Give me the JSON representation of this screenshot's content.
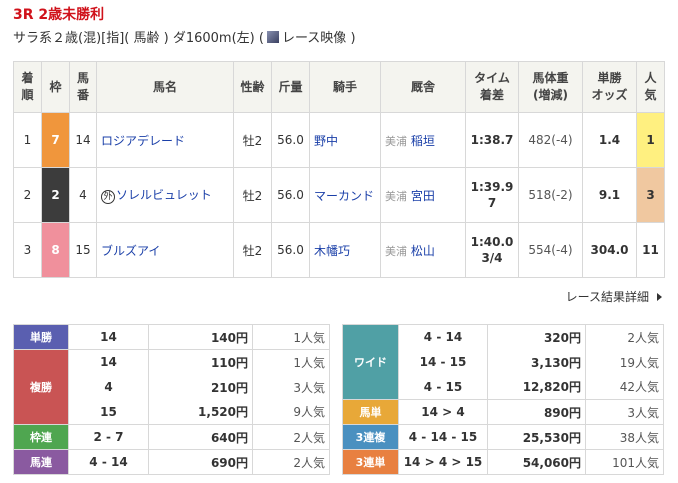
{
  "race": {
    "title": "3R 2歳未勝利",
    "conditions": "サラ系２歳(混)[指]( 馬齢 ) ダ1600m(左)  (",
    "video_label": "レース映像",
    "close_paren": ")"
  },
  "table": {
    "headers": [
      "着\n順",
      "枠",
      "馬\n番",
      "馬名",
      "性齢",
      "斤量",
      "騎手",
      "厩舎",
      "タイム\n着差",
      "馬体重\n(増減)",
      "単勝\nオッズ",
      "人\n気"
    ],
    "rows": [
      {
        "rank": "1",
        "frame": "7",
        "frame_color": "#f0963c",
        "num": "14",
        "name": "ロジアデレード",
        "mark": "",
        "sexage": "牡2",
        "weight": "56.0",
        "jockey": "野中",
        "stable_loc": "美浦",
        "trainer": "稲垣",
        "time": "1:38.7",
        "margin": "",
        "body": "482(-4)",
        "odds": "1.4",
        "pop": "1",
        "pop_color": "#fff080"
      },
      {
        "rank": "2",
        "frame": "2",
        "frame_color": "#3c3c3c",
        "num": "4",
        "name": "ソレルビュレット",
        "mark": "外",
        "sexage": "牡2",
        "weight": "56.0",
        "jockey": "マーカンド",
        "stable_loc": "美浦",
        "trainer": "宮田",
        "time": "1:39.9",
        "margin": "7",
        "body": "518(-2)",
        "odds": "9.1",
        "pop": "3",
        "pop_color": "#f0c8a0"
      },
      {
        "rank": "3",
        "frame": "8",
        "frame_color": "#f0909c",
        "num": "15",
        "name": "ブルズアイ",
        "mark": "",
        "sexage": "牡2",
        "weight": "56.0",
        "jockey": "木幡巧",
        "stable_loc": "美浦",
        "trainer": "松山",
        "time": "1:40.0",
        "margin": "3/4",
        "body": "554(-4)",
        "odds": "304.0",
        "pop": "11",
        "pop_color": ""
      }
    ]
  },
  "more_link": "レース結果詳細",
  "payouts_left": [
    {
      "label": "単勝",
      "color": "#5a5fb0",
      "rows": [
        [
          "14",
          "140円",
          "1人気"
        ]
      ]
    },
    {
      "label": "複勝",
      "color": "#c95454",
      "rows": [
        [
          "14",
          "110円",
          "1人気"
        ],
        [
          "4",
          "210円",
          "3人気"
        ],
        [
          "15",
          "1,520円",
          "9人気"
        ]
      ]
    },
    {
      "label": "枠連",
      "color": "#4fa650",
      "rows": [
        [
          "2 - 7",
          "640円",
          "2人気"
        ]
      ]
    },
    {
      "label": "馬連",
      "color": "#8a5aa0",
      "rows": [
        [
          "4 - 14",
          "690円",
          "2人気"
        ]
      ]
    }
  ],
  "payouts_right": [
    {
      "label": "ワイド",
      "color": "#50a0a5",
      "rows": [
        [
          "4 - 14",
          "320円",
          "2人気"
        ],
        [
          "14 - 15",
          "3,130円",
          "19人気"
        ],
        [
          "4 - 15",
          "12,820円",
          "42人気"
        ]
      ]
    },
    {
      "label": "馬単",
      "color": "#e8a838",
      "rows": [
        [
          "14 > 4",
          "890円",
          "3人気"
        ]
      ]
    },
    {
      "label": "3連複",
      "color": "#4a90c0",
      "rows": [
        [
          "4 - 14 - 15",
          "25,530円",
          "38人気"
        ]
      ]
    },
    {
      "label": "3連単",
      "color": "#e88040",
      "rows": [
        [
          "14 > 4 > 15",
          "54,060円",
          "101人気"
        ]
      ]
    }
  ]
}
